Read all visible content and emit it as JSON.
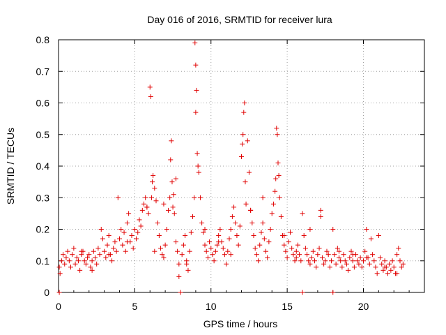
{
  "chart_data": {
    "type": "scatter",
    "title": "Day 016 of 2016, SRMTID for receiver lura",
    "xlabel": "GPS time / hours",
    "ylabel": "SRMTID / TECUs",
    "xlim": [
      0,
      24
    ],
    "ylim": [
      0,
      0.8
    ],
    "xticks": [
      0,
      5,
      10,
      15,
      20
    ],
    "yticks": [
      0,
      0.1,
      0.2,
      0.3,
      0.4,
      0.5,
      0.6,
      0.7,
      0.8
    ],
    "xtick_labels": [
      "0",
      "5",
      "10",
      "15",
      "20"
    ],
    "ytick_labels": [
      "0",
      "0.1",
      "0.2",
      "0.3",
      "0.4",
      "0.5",
      "0.6",
      "0.7",
      "0.8"
    ],
    "grid": true,
    "marker": "+",
    "color": "#e00000",
    "series": [
      {
        "name": "SRMTID",
        "x": [
          0.05,
          0.05,
          0.2,
          0.3,
          0.4,
          0.5,
          0.6,
          0.7,
          0.8,
          0.9,
          1.0,
          1.1,
          1.2,
          1.3,
          1.4,
          1.5,
          1.6,
          1.7,
          1.8,
          1.9,
          2.0,
          2.1,
          2.2,
          2.3,
          2.4,
          2.5,
          2.6,
          2.7,
          2.8,
          2.9,
          3.0,
          3.1,
          3.2,
          3.3,
          3.4,
          3.5,
          3.6,
          3.7,
          3.8,
          3.9,
          4.0,
          4.1,
          4.2,
          4.3,
          4.4,
          4.5,
          4.6,
          4.7,
          4.8,
          4.9,
          5.0,
          5.1,
          5.2,
          5.3,
          5.4,
          5.5,
          5.6,
          5.7,
          5.8,
          5.9,
          6.0,
          6.05,
          6.1,
          6.15,
          6.2,
          6.3,
          6.4,
          6.5,
          6.6,
          6.7,
          6.8,
          6.9,
          7.0,
          7.1,
          7.2,
          7.3,
          7.35,
          7.4,
          7.45,
          7.5,
          7.55,
          7.6,
          7.7,
          7.8,
          7.9,
          8.0,
          8.1,
          8.2,
          8.3,
          8.4,
          8.5,
          8.6,
          8.7,
          8.8,
          8.9,
          8.95,
          9.0,
          9.0,
          9.05,
          9.1,
          9.15,
          9.2,
          9.3,
          9.4,
          9.5,
          9.6,
          9.7,
          9.8,
          9.9,
          10.0,
          10.1,
          10.2,
          10.3,
          10.4,
          10.5,
          10.6,
          10.7,
          10.8,
          10.9,
          11.0,
          11.1,
          11.2,
          11.3,
          11.4,
          11.5,
          11.6,
          11.7,
          11.8,
          11.9,
          12.0,
          12.05,
          12.1,
          12.15,
          12.2,
          12.25,
          12.3,
          12.4,
          12.5,
          12.6,
          12.7,
          12.8,
          12.9,
          13.0,
          13.1,
          13.2,
          13.3,
          13.4,
          13.5,
          13.6,
          13.7,
          13.8,
          13.9,
          14.0,
          14.1,
          14.2,
          14.25,
          14.3,
          14.35,
          14.4,
          14.45,
          14.5,
          14.6,
          14.7,
          14.8,
          14.9,
          15.0,
          15.1,
          15.2,
          15.3,
          15.4,
          15.5,
          15.6,
          15.7,
          15.8,
          15.9,
          16.0,
          16.0,
          16.1,
          16.2,
          16.3,
          16.4,
          16.5,
          16.6,
          16.7,
          16.8,
          16.9,
          17.0,
          17.1,
          17.2,
          17.3,
          17.4,
          17.5,
          17.6,
          17.7,
          17.8,
          17.9,
          18.0,
          18.0,
          18.1,
          18.2,
          18.3,
          18.4,
          18.5,
          18.6,
          18.7,
          18.8,
          18.9,
          19.0,
          19.1,
          19.2,
          19.3,
          19.4,
          19.5,
          19.6,
          19.7,
          19.8,
          19.9,
          20.0,
          20.1,
          20.2,
          20.3,
          20.4,
          20.5,
          20.6,
          20.7,
          20.8,
          20.9,
          21.0,
          21.1,
          21.2,
          21.3,
          21.4,
          21.5,
          21.6,
          21.7,
          21.8,
          21.9,
          22.0,
          22.1,
          22.2,
          22.3,
          22.4,
          22.5,
          22.6,
          7.9,
          0.1,
          1.5,
          2.2,
          3.3,
          4.5,
          5.8,
          6.3,
          6.9,
          7.7,
          8.4,
          9.6,
          10.5,
          11.3,
          12.6,
          13.4,
          14.8,
          15.6,
          16.5,
          17.2,
          18.4,
          19.3,
          20.2,
          21.4,
          22.2
        ],
        "y": [
          0.0,
          0.08,
          0.1,
          0.12,
          0.09,
          0.11,
          0.13,
          0.1,
          0.08,
          0.12,
          0.14,
          0.09,
          0.11,
          0.1,
          0.07,
          0.12,
          0.13,
          0.1,
          0.09,
          0.11,
          0.12,
          0.08,
          0.1,
          0.13,
          0.11,
          0.09,
          0.14,
          0.12,
          0.2,
          0.17,
          0.13,
          0.11,
          0.15,
          0.18,
          0.12,
          0.1,
          0.14,
          0.16,
          0.13,
          0.3,
          0.17,
          0.2,
          0.15,
          0.19,
          0.13,
          0.22,
          0.25,
          0.16,
          0.18,
          0.14,
          0.2,
          0.17,
          0.19,
          0.23,
          0.21,
          0.26,
          0.28,
          0.3,
          0.27,
          0.25,
          0.65,
          0.62,
          0.3,
          0.35,
          0.37,
          0.33,
          0.29,
          0.22,
          0.18,
          0.14,
          0.12,
          0.11,
          0.15,
          0.2,
          0.26,
          0.3,
          0.42,
          0.48,
          0.35,
          0.27,
          0.31,
          0.25,
          0.16,
          0.13,
          0.05,
          0.0,
          0.12,
          0.15,
          0.18,
          0.1,
          0.07,
          0.13,
          0.19,
          0.24,
          0.3,
          0.79,
          0.72,
          0.57,
          0.64,
          0.44,
          0.4,
          0.38,
          0.3,
          0.22,
          0.19,
          0.15,
          0.13,
          0.11,
          0.16,
          0.14,
          0.12,
          0.1,
          0.13,
          0.15,
          0.18,
          0.2,
          0.16,
          0.14,
          0.12,
          0.09,
          0.13,
          0.17,
          0.2,
          0.24,
          0.27,
          0.22,
          0.18,
          0.15,
          0.21,
          0.43,
          0.47,
          0.5,
          0.57,
          0.6,
          0.35,
          0.28,
          0.48,
          0.38,
          0.26,
          0.22,
          0.18,
          0.14,
          0.12,
          0.1,
          0.15,
          0.19,
          0.22,
          0.17,
          0.13,
          0.11,
          0.16,
          0.2,
          0.25,
          0.28,
          0.32,
          0.36,
          0.52,
          0.5,
          0.41,
          0.37,
          0.3,
          0.24,
          0.18,
          0.15,
          0.13,
          0.11,
          0.16,
          0.19,
          0.14,
          0.12,
          0.1,
          0.13,
          0.15,
          0.12,
          0.1,
          0.0,
          0.25,
          0.18,
          0.14,
          0.12,
          0.1,
          0.09,
          0.11,
          0.13,
          0.1,
          0.08,
          0.12,
          0.14,
          0.24,
          0.11,
          0.09,
          0.1,
          0.13,
          0.12,
          0.08,
          0.1,
          0.2,
          0.0,
          0.12,
          0.09,
          0.14,
          0.11,
          0.1,
          0.08,
          0.12,
          0.1,
          0.09,
          0.07,
          0.11,
          0.13,
          0.1,
          0.08,
          0.12,
          0.1,
          0.09,
          0.11,
          0.08,
          0.1,
          0.13,
          0.2,
          0.11,
          0.09,
          0.17,
          0.12,
          0.1,
          0.08,
          0.06,
          0.18,
          0.11,
          0.09,
          0.07,
          0.1,
          0.08,
          0.06,
          0.09,
          0.07,
          0.1,
          0.08,
          0.06,
          0.12,
          0.14,
          0.1,
          0.08,
          0.09,
          0.09,
          0.06,
          0.13,
          0.07,
          0.12,
          0.16,
          0.27,
          0.13,
          0.28,
          0.36,
          0.09,
          0.2,
          0.16,
          0.12,
          0.26,
          0.3,
          0.18,
          0.11,
          0.2,
          0.26,
          0.13,
          0.12,
          0.11,
          0.08,
          0.06
        ]
      }
    ]
  }
}
